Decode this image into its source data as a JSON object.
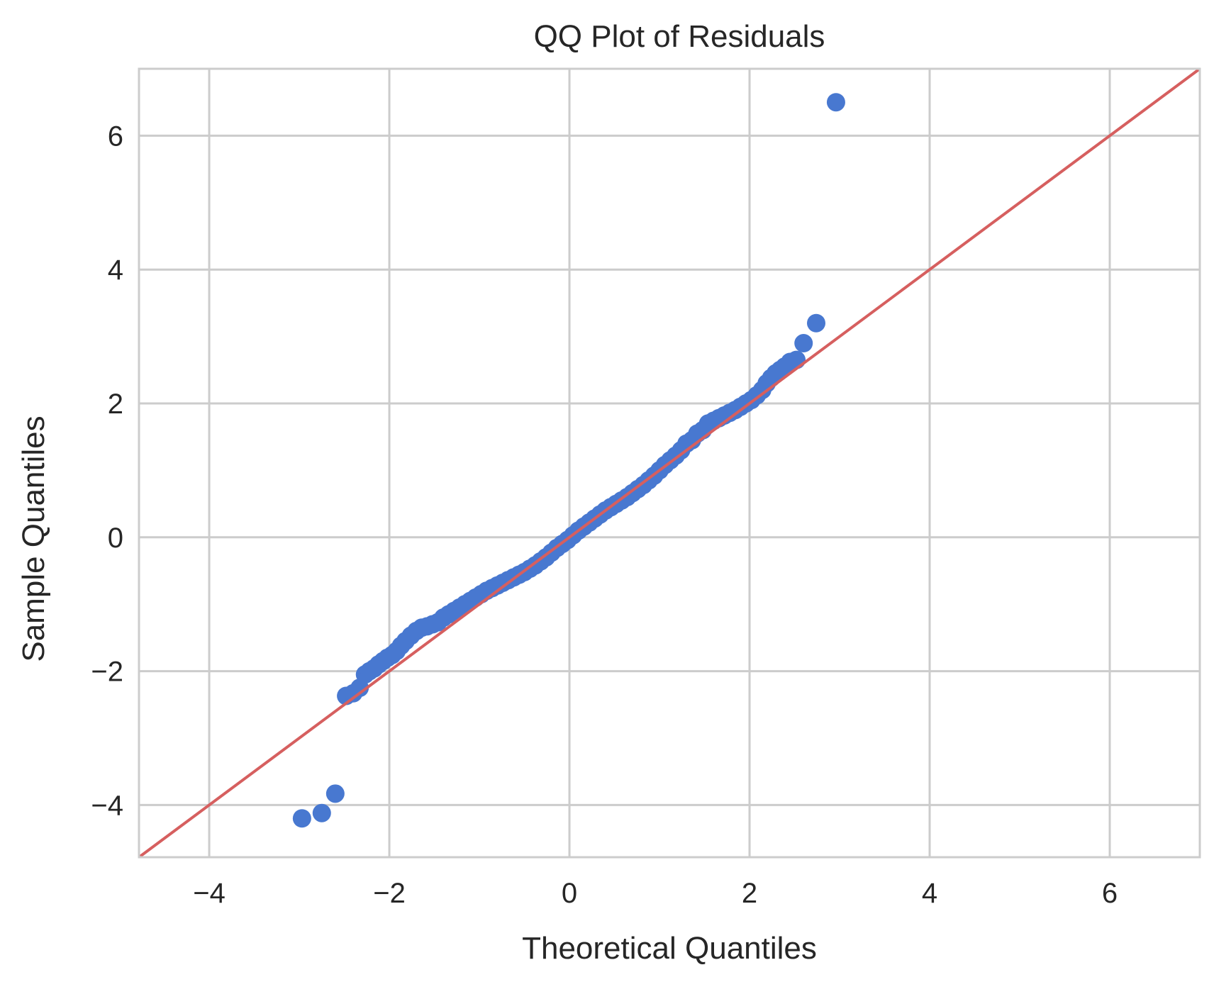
{
  "chart_data": {
    "type": "scatter",
    "title": "QQ Plot of Residuals",
    "xlabel": "Theoretical Quantiles",
    "ylabel": "Sample Quantiles",
    "xlim": [
      -4.78,
      7.0
    ],
    "ylim": [
      -4.78,
      7.0
    ],
    "x_ticks": [
      -4,
      -2,
      0,
      2,
      4,
      6
    ],
    "y_ticks": [
      -4,
      -2,
      0,
      2,
      4,
      6
    ],
    "x_tick_labels": [
      "−4",
      "−2",
      "0",
      "2",
      "4",
      "6"
    ],
    "y_tick_labels": [
      "−4",
      "−2",
      "0",
      "2",
      "4",
      "6"
    ],
    "grid": true,
    "legend": "none",
    "colors": {
      "points": "#4878d0",
      "reference_line": "#d65f5f",
      "grid": "#cccccc",
      "frame": "#cccccc"
    },
    "series": [
      {
        "kind": "points",
        "x": [
          -2.97,
          -2.75,
          -2.6,
          -2.48,
          -2.4,
          -2.33,
          -2.27,
          -2.22,
          -2.17,
          -2.12,
          -2.07,
          -2.02,
          -1.97,
          -1.92,
          -1.87,
          -1.82,
          -1.76,
          -1.7,
          -1.64,
          -1.58,
          -1.52,
          -1.46,
          -1.4,
          -1.34,
          -1.28,
          -1.22,
          -1.16,
          -1.1,
          -1.04,
          -0.98,
          -0.92,
          -0.86,
          -0.8,
          -0.74,
          -0.68,
          -0.62,
          -0.56,
          -0.5,
          -0.44,
          -0.38,
          -0.32,
          -0.26,
          -0.2,
          -0.14,
          -0.08,
          -0.02,
          0.04,
          0.1,
          0.16,
          0.22,
          0.28,
          0.34,
          0.4,
          0.46,
          0.52,
          0.58,
          0.64,
          0.7,
          0.76,
          0.82,
          0.88,
          0.94,
          1.0,
          1.06,
          1.12,
          1.18,
          1.24,
          1.3,
          1.36,
          1.42,
          1.48,
          1.54,
          1.6,
          1.66,
          1.72,
          1.78,
          1.84,
          1.9,
          1.96,
          2.02,
          2.08,
          2.14,
          2.19,
          2.24,
          2.29,
          2.34,
          2.39,
          2.45,
          2.52,
          2.6,
          2.74,
          2.96
        ],
        "y": [
          -4.2,
          -4.12,
          -3.83,
          -2.37,
          -2.33,
          -2.25,
          -2.05,
          -2.0,
          -1.96,
          -1.9,
          -1.85,
          -1.8,
          -1.76,
          -1.7,
          -1.62,
          -1.55,
          -1.47,
          -1.4,
          -1.35,
          -1.33,
          -1.3,
          -1.27,
          -1.2,
          -1.15,
          -1.1,
          -1.05,
          -1.0,
          -0.95,
          -0.9,
          -0.85,
          -0.8,
          -0.76,
          -0.72,
          -0.68,
          -0.64,
          -0.6,
          -0.56,
          -0.52,
          -0.47,
          -0.42,
          -0.36,
          -0.3,
          -0.23,
          -0.16,
          -0.1,
          -0.04,
          0.03,
          0.1,
          0.16,
          0.22,
          0.28,
          0.34,
          0.4,
          0.45,
          0.5,
          0.55,
          0.6,
          0.66,
          0.72,
          0.78,
          0.85,
          0.92,
          1.0,
          1.08,
          1.15,
          1.22,
          1.3,
          1.4,
          1.45,
          1.55,
          1.6,
          1.7,
          1.74,
          1.78,
          1.82,
          1.86,
          1.9,
          1.95,
          2.0,
          2.05,
          2.12,
          2.2,
          2.3,
          2.38,
          2.45,
          2.5,
          2.55,
          2.62,
          2.65,
          2.9,
          3.2,
          6.5
        ]
      },
      {
        "kind": "reference_line",
        "x": [
          -4.78,
          7.0
        ],
        "y": [
          -4.78,
          7.0
        ]
      }
    ]
  }
}
